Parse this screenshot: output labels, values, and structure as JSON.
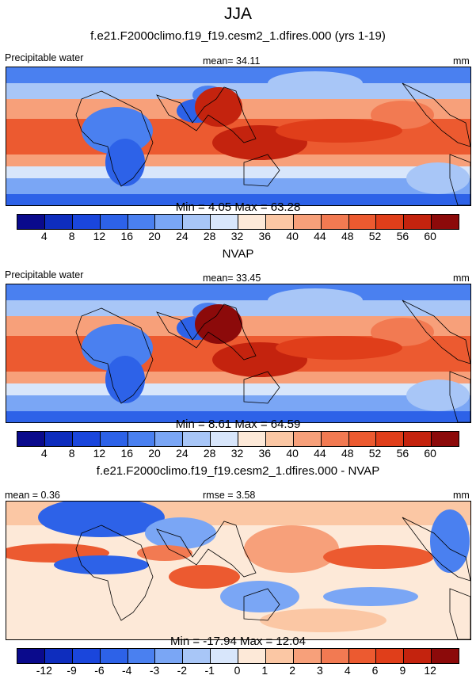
{
  "figure": {
    "season": "JJA",
    "panel1_subtitle": "f.e21.F2000climo.f19_f19.cesm2_1.dfires.000 (yrs 1-19)",
    "panel2_subtitle": "NVAP",
    "panel3_subtitle": "f.e21.F2000climo.f19_f19.cesm2_1.dfires.000 - NVAP"
  },
  "panels": [
    {
      "left_label": "Precipitable water",
      "center_label": "mean=  34.11",
      "right_label": "mm",
      "minmax": "Min =   4.05 Max =  63.28"
    },
    {
      "left_label": "Precipitable water",
      "center_label": "mean=  33.45",
      "right_label": "mm",
      "minmax": "Min =   8.61 Max =  64.59"
    },
    {
      "left_label": "mean =   0.36",
      "center_label": "rmse =   3.58",
      "right_label": "mm",
      "minmax": "Min = -17.94 Max =  12.04"
    }
  ],
  "colorbars": {
    "abs_labels": [
      "4",
      "8",
      "12",
      "16",
      "20",
      "24",
      "28",
      "32",
      "36",
      "40",
      "44",
      "48",
      "52",
      "56",
      "60"
    ],
    "diff_labels": [
      "-12",
      "-9",
      "-6",
      "-4",
      "-3",
      "-2",
      "-1",
      "0",
      "1",
      "2",
      "3",
      "4",
      "6",
      "9",
      "12"
    ],
    "colors": [
      "#0a0a8c",
      "#0e2dbe",
      "#1a46dc",
      "#2d62e8",
      "#4a80f0",
      "#7aa6f5",
      "#a8c6f7",
      "#d8e6fb",
      "#fde9d8",
      "#fbc7a4",
      "#f7a07a",
      "#f27a52",
      "#ec5a30",
      "#e03e1a",
      "#c4230e",
      "#8c0a0a"
    ]
  },
  "map_data": {
    "abs_levels_mm": [
      0,
      4,
      8,
      12,
      16,
      20,
      24,
      28,
      32,
      36,
      40,
      44,
      48,
      52,
      56,
      60
    ],
    "diff_levels_mm": [
      -12,
      -9,
      -6,
      -4,
      -3,
      -2,
      -1,
      0,
      1,
      2,
      3,
      4,
      6,
      9,
      12
    ],
    "projection": "cylindrical equidistant, longitude 0 to 360 (centered on Pacific)"
  }
}
